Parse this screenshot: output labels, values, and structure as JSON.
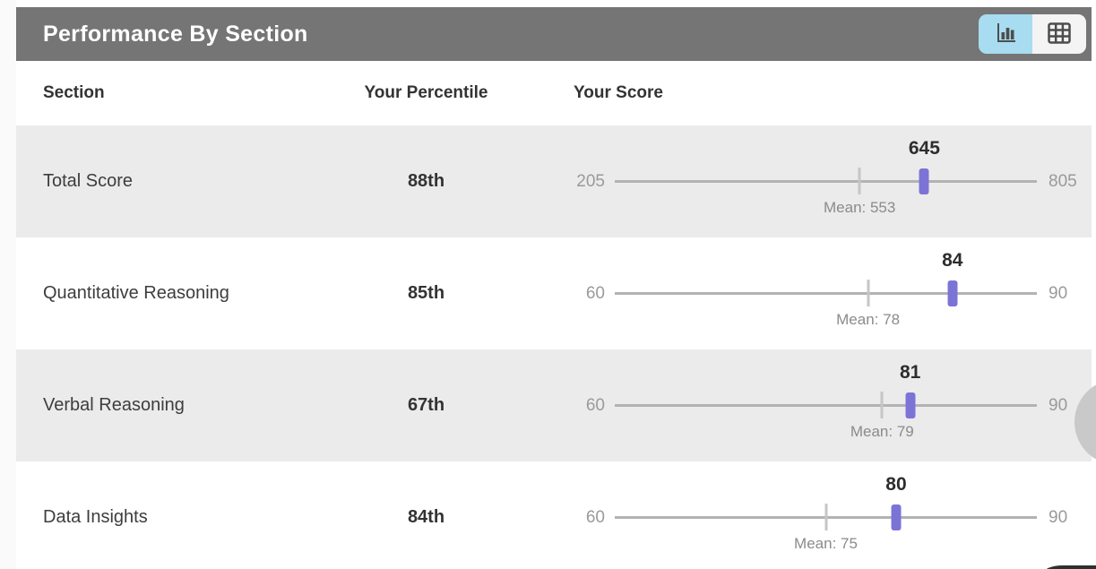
{
  "panel": {
    "title": "Performance By Section",
    "view_toggle": {
      "active_view": "chart",
      "chart_button": "bar-chart view",
      "table_button": "table view"
    }
  },
  "table": {
    "columns": {
      "section": "Section",
      "percentile": "Your Percentile",
      "score": "Your Score"
    },
    "rows": [
      {
        "section": "Total Score",
        "percentile": "88th",
        "score": 645,
        "score_label": "645",
        "min": 205,
        "max": 805,
        "min_label": "205",
        "max_label": "805",
        "mean": 553,
        "mean_label": "Mean: 553"
      },
      {
        "section": "Quantitative Reasoning",
        "percentile": "85th",
        "score": 84,
        "score_label": "84",
        "min": 60,
        "max": 90,
        "min_label": "60",
        "max_label": "90",
        "mean": 78,
        "mean_label": "Mean: 78"
      },
      {
        "section": "Verbal Reasoning",
        "percentile": "67th",
        "score": 81,
        "score_label": "81",
        "min": 60,
        "max": 90,
        "min_label": "60",
        "max_label": "90",
        "mean": 79,
        "mean_label": "Mean: 79"
      },
      {
        "section": "Data Insights",
        "percentile": "84th",
        "score": 80,
        "score_label": "80",
        "min": 60,
        "max": 90,
        "min_label": "60",
        "max_label": "90",
        "mean": 75,
        "mean_label": "Mean: 75"
      }
    ]
  },
  "colors": {
    "header_bar": "#757575",
    "row_alternate": "#ebebeb",
    "score_marker": "#7b74d6",
    "slider_track": "#b3b3b3",
    "mean_tick": "#c6c6c6",
    "toggle_active_bg": "#a8dcf1",
    "toggle_inactive_bg": "#f4f4f4"
  }
}
